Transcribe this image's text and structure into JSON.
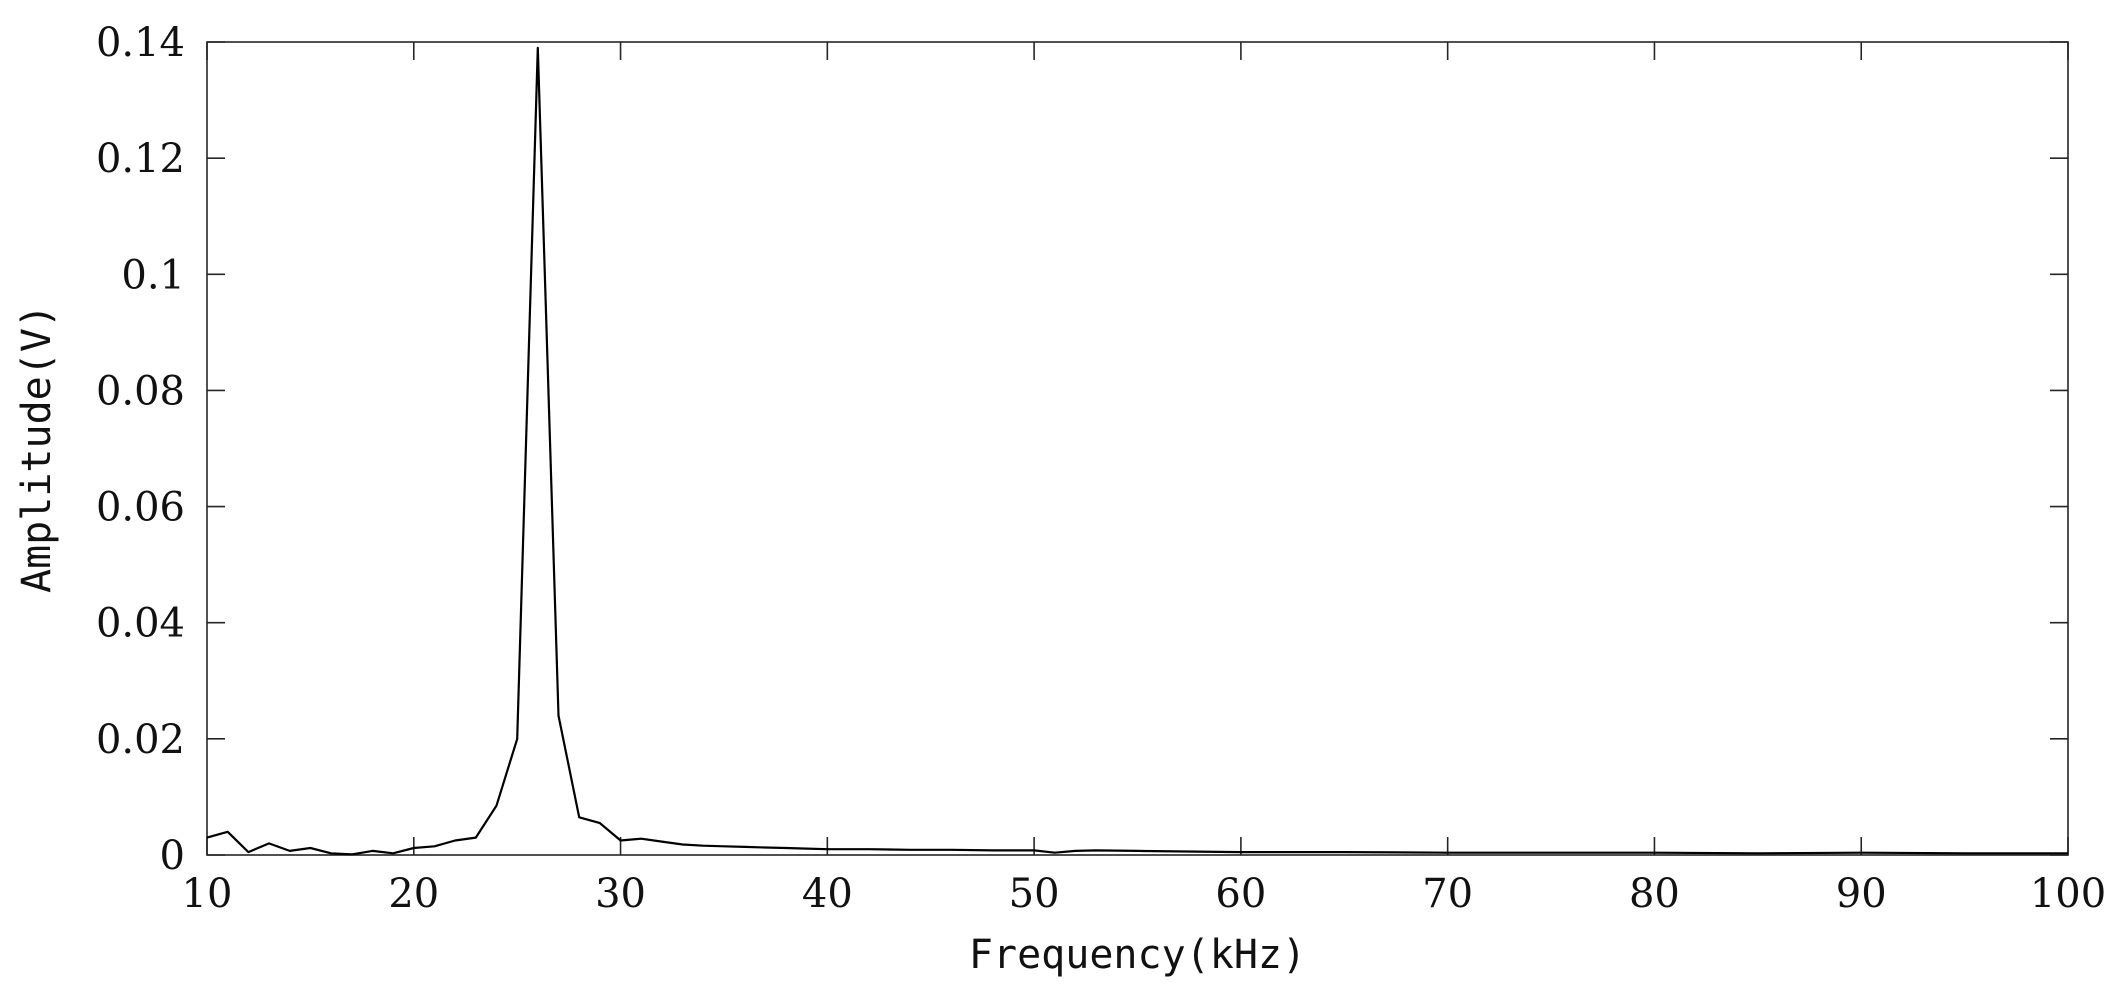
{
  "chart_data": {
    "type": "line",
    "title": "",
    "xlabel": "Frequency(kHz)",
    "ylabel": "Amplitude(V)",
    "xlim": [
      10,
      100
    ],
    "ylim": [
      0,
      0.14
    ],
    "xticks": [
      10,
      20,
      30,
      40,
      50,
      60,
      70,
      80,
      90,
      100
    ],
    "xtick_labels": [
      "10",
      "20",
      "30",
      "40",
      "50",
      "60",
      "70",
      "80",
      "90",
      "100"
    ],
    "yticks": [
      0,
      0.02,
      0.04,
      0.06,
      0.08,
      0.1,
      0.12,
      0.14
    ],
    "ytick_labels": [
      "0",
      "0.02",
      "0.04",
      "0.06",
      "0.08",
      "0.1",
      "0.12",
      "0.14"
    ],
    "grid": false,
    "legend": "none",
    "series": [
      {
        "color": "#000000",
        "x": [
          10,
          11,
          12,
          13,
          14,
          15,
          16,
          17,
          18,
          19,
          20,
          21,
          22,
          23,
          24,
          25,
          26,
          27,
          28,
          29,
          30,
          31,
          32,
          33,
          34,
          35,
          36,
          37,
          38,
          39,
          40,
          42,
          44,
          46,
          48,
          50,
          51,
          52,
          53,
          55,
          60,
          65,
          70,
          75,
          80,
          85,
          90,
          95,
          100
        ],
        "y": [
          0.003,
          0.004,
          0.0005,
          0.002,
          0.0007,
          0.0012,
          0.0003,
          0.0001,
          0.0007,
          0.0003,
          0.0012,
          0.0015,
          0.0025,
          0.003,
          0.0085,
          0.02,
          0.139,
          0.024,
          0.0065,
          0.0055,
          0.0025,
          0.0028,
          0.0023,
          0.0018,
          0.0016,
          0.0015,
          0.0014,
          0.0013,
          0.0012,
          0.0011,
          0.001,
          0.001,
          0.0009,
          0.0009,
          0.0008,
          0.0008,
          0.0004,
          0.0007,
          0.0008,
          0.0007,
          0.0005,
          0.0005,
          0.0004,
          0.0004,
          0.0004,
          0.0003,
          0.0004,
          0.0003,
          0.0003
        ]
      }
    ]
  }
}
